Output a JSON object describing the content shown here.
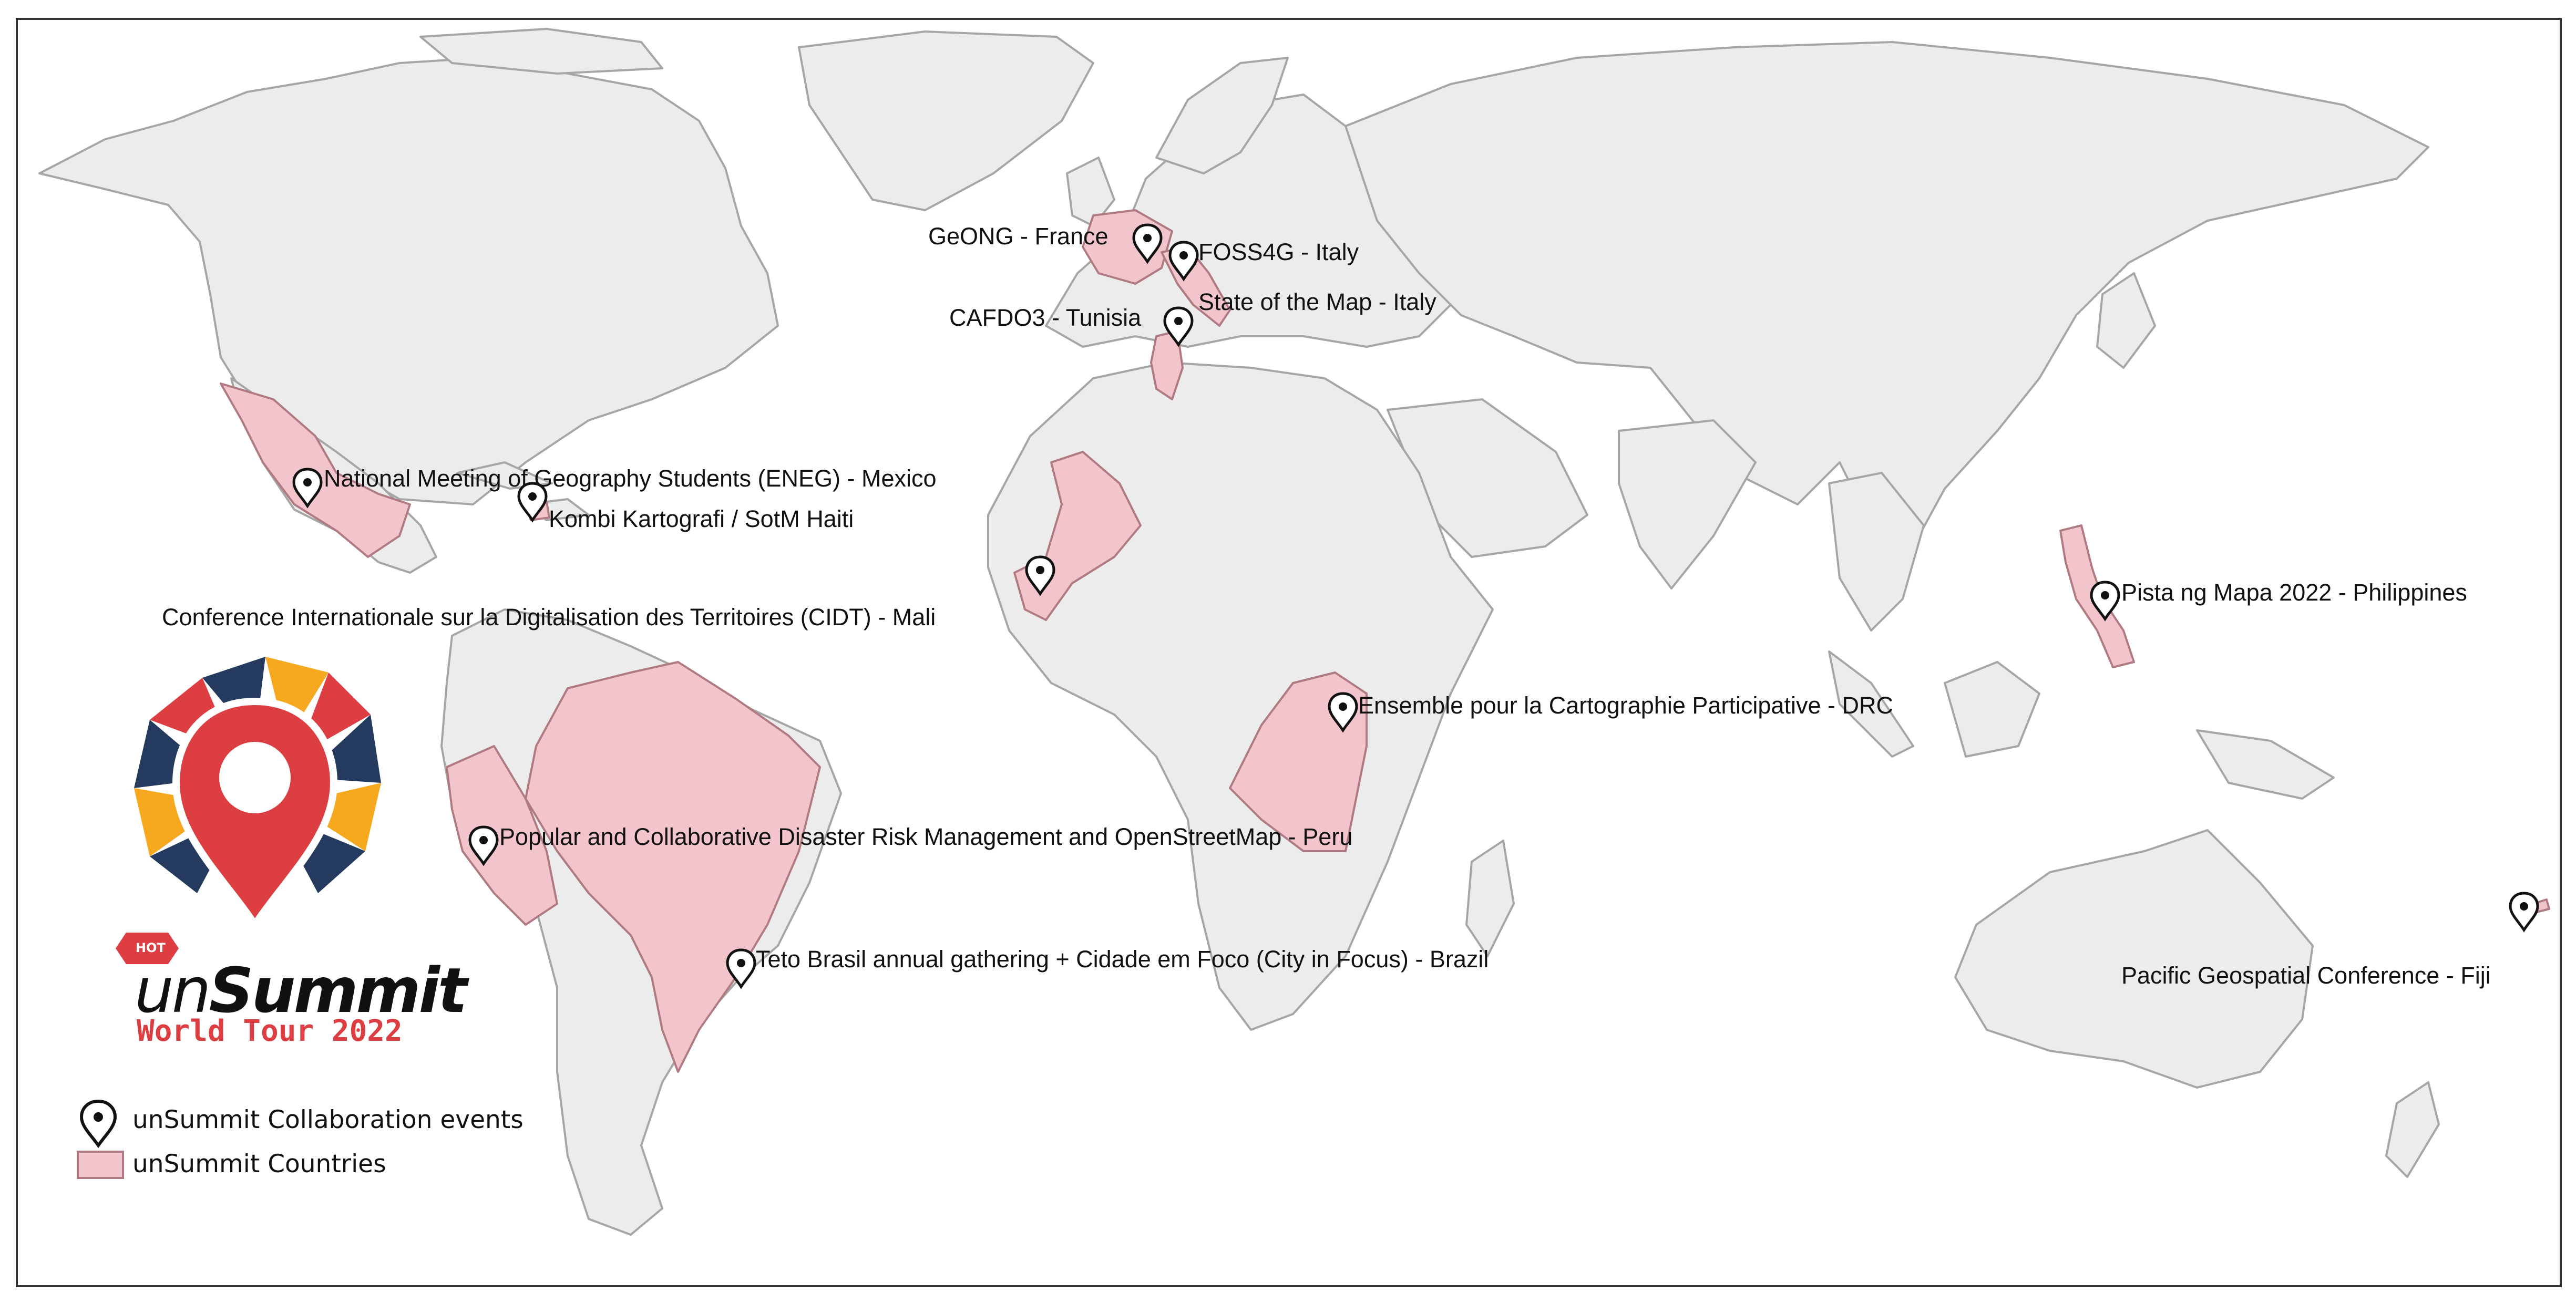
{
  "map": {
    "land_color": "#ececec",
    "border_color": "#a6a6a6",
    "highlight_color": "#f2c4cb",
    "highlight_border": "#b07a82",
    "frame_color": "#333333",
    "highlighted_countries": [
      "Mexico",
      "Haiti",
      "Brazil",
      "Peru",
      "France",
      "Italy",
      "Tunisia",
      "Mali",
      "DRC",
      "Philippines",
      "Fiji"
    ]
  },
  "events": [
    {
      "id": "france",
      "label": "GeONG - France"
    },
    {
      "id": "italy-foss4g",
      "label": "FOSS4G - Italy"
    },
    {
      "id": "italy-sotm",
      "label": "State of the Map - Italy"
    },
    {
      "id": "tunisia",
      "label": "CAFDO3 - Tunisia"
    },
    {
      "id": "mexico",
      "label": "National Meeting of Geography Students (ENEG) - Mexico"
    },
    {
      "id": "haiti",
      "label": "Kombi Kartografi / SotM Haiti"
    },
    {
      "id": "mali",
      "label": "Conference Internationale sur la Digitalisation des Territoires (CIDT) - Mali"
    },
    {
      "id": "philippines",
      "label": "Pista ng Mapa 2022 - Philippines"
    },
    {
      "id": "drc",
      "label": "Ensemble pour la Cartographie Participative - DRC"
    },
    {
      "id": "peru",
      "label": "Popular and Collaborative Disaster Risk Management and OpenStreetMap - Peru"
    },
    {
      "id": "brazil",
      "label": "Teto Brasil annual gathering + Cidade em Foco (City in Focus) - Brazil"
    },
    {
      "id": "fiji",
      "label": "Pacific Geospatial Conference - Fiji"
    }
  ],
  "legend": {
    "events_label": "unSummit Collaboration events",
    "countries_label": "unSummit Countries",
    "pin_icon": "map-pin-icon"
  },
  "logo": {
    "badge": "HOT",
    "word_un": "un",
    "word_summit": "Summit",
    "subtitle": "World Tour 2022",
    "colors": {
      "red": "#dc3e42",
      "navy": "#243a5e",
      "yellow": "#f6a81f"
    }
  }
}
